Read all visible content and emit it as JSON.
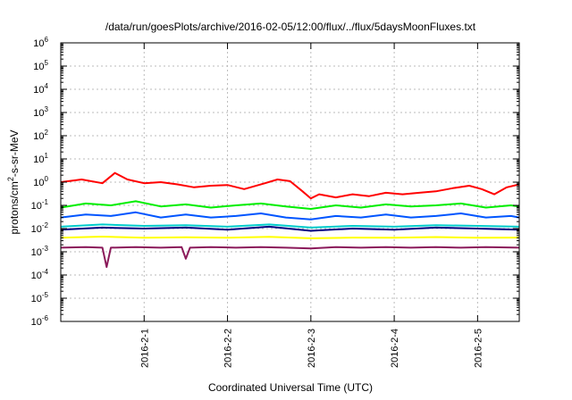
{
  "chart_data": {
    "type": "line",
    "title": "/data/run/goesPlots/archive/2016-02-05/12:00/flux/../flux/5daysMoonFluxes.txt",
    "xlabel": "Coordinated Universal Time (UTC)",
    "ylabel_parts": {
      "base": "protons/cm",
      "sup": "2",
      "rest": "-s-sr-MeV"
    },
    "y_scale": "log",
    "ylim_exponents": [
      -6,
      6
    ],
    "y_ticks": [
      {
        "base": "10",
        "exp": "-6"
      },
      {
        "base": "10",
        "exp": "-5"
      },
      {
        "base": "10",
        "exp": "-4"
      },
      {
        "base": "10",
        "exp": "-3"
      },
      {
        "base": "10",
        "exp": "-2"
      },
      {
        "base": "10",
        "exp": "-1"
      },
      {
        "base": "10",
        "exp": "0"
      },
      {
        "base": "10",
        "exp": "1"
      },
      {
        "base": "10",
        "exp": "2"
      },
      {
        "base": "10",
        "exp": "3"
      },
      {
        "base": "10",
        "exp": "4"
      },
      {
        "base": "10",
        "exp": "5"
      },
      {
        "base": "10",
        "exp": "6"
      }
    ],
    "x_ticks": [
      "2016-2-1",
      "2016-2-2",
      "2016-2-3",
      "2016-2-4",
      "2016-2-5"
    ],
    "x_tick_days": [
      1,
      2,
      3,
      4,
      5
    ],
    "xlim_days": [
      0.0,
      5.5
    ],
    "grid": true,
    "series": [
      {
        "color": "#ff0000",
        "x": [
          0.0,
          0.25,
          0.5,
          0.65,
          0.8,
          1.0,
          1.2,
          1.4,
          1.6,
          1.8,
          2.0,
          2.2,
          2.45,
          2.6,
          2.75,
          2.9,
          3.0,
          3.1,
          3.3,
          3.5,
          3.7,
          3.9,
          4.1,
          4.3,
          4.5,
          4.7,
          4.9,
          5.05,
          5.2,
          5.35,
          5.5
        ],
        "y": [
          1.0,
          1.3,
          0.9,
          2.5,
          1.3,
          0.9,
          1.0,
          0.8,
          0.6,
          0.7,
          0.75,
          0.5,
          0.9,
          1.3,
          1.1,
          0.4,
          0.2,
          0.3,
          0.22,
          0.3,
          0.25,
          0.35,
          0.3,
          0.35,
          0.4,
          0.55,
          0.7,
          0.5,
          0.3,
          0.6,
          0.8
        ]
      },
      {
        "color": "#00ee00",
        "x": [
          0.0,
          0.3,
          0.6,
          0.9,
          1.2,
          1.5,
          1.8,
          2.1,
          2.4,
          2.7,
          3.0,
          3.3,
          3.6,
          3.9,
          4.2,
          4.5,
          4.8,
          5.1,
          5.4,
          5.5
        ],
        "y": [
          0.08,
          0.12,
          0.1,
          0.15,
          0.09,
          0.11,
          0.08,
          0.1,
          0.12,
          0.09,
          0.07,
          0.1,
          0.08,
          0.11,
          0.09,
          0.1,
          0.12,
          0.08,
          0.1,
          0.09
        ]
      },
      {
        "color": "#0055ff",
        "x": [
          0.0,
          0.3,
          0.6,
          0.9,
          1.2,
          1.5,
          1.8,
          2.1,
          2.4,
          2.7,
          3.0,
          3.3,
          3.6,
          3.9,
          4.2,
          4.5,
          4.8,
          5.1,
          5.4,
          5.5
        ],
        "y": [
          0.03,
          0.04,
          0.035,
          0.05,
          0.03,
          0.04,
          0.03,
          0.035,
          0.045,
          0.03,
          0.025,
          0.035,
          0.03,
          0.04,
          0.03,
          0.035,
          0.045,
          0.03,
          0.035,
          0.03
        ]
      },
      {
        "color": "#00cccc",
        "x": [
          0.0,
          0.5,
          1.0,
          1.5,
          2.0,
          2.5,
          3.0,
          3.5,
          4.0,
          4.5,
          5.0,
          5.5
        ],
        "y": [
          0.012,
          0.015,
          0.013,
          0.014,
          0.012,
          0.015,
          0.011,
          0.013,
          0.012,
          0.014,
          0.013,
          0.012
        ]
      },
      {
        "color": "#000080",
        "x": [
          0.0,
          0.5,
          1.0,
          1.5,
          2.0,
          2.5,
          3.0,
          3.5,
          4.0,
          4.5,
          5.0,
          5.5
        ],
        "y": [
          0.009,
          0.011,
          0.01,
          0.011,
          0.009,
          0.012,
          0.008,
          0.01,
          0.009,
          0.011,
          0.01,
          0.009
        ]
      },
      {
        "color": "#ffff00",
        "x": [
          0.0,
          0.5,
          1.0,
          1.5,
          2.0,
          2.5,
          3.0,
          3.5,
          4.0,
          4.5,
          5.0,
          5.5
        ],
        "y": [
          0.004,
          0.0045,
          0.004,
          0.0042,
          0.004,
          0.0044,
          0.0038,
          0.0041,
          0.004,
          0.0043,
          0.004,
          0.0041
        ]
      },
      {
        "color": "#8b1a5a",
        "x": [
          0.0,
          0.3,
          0.5,
          0.55,
          0.6,
          0.9,
          1.2,
          1.45,
          1.5,
          1.55,
          1.8,
          2.1,
          2.4,
          2.7,
          3.0,
          3.3,
          3.6,
          3.9,
          4.2,
          4.5,
          4.8,
          5.1,
          5.5
        ],
        "y": [
          0.0015,
          0.0016,
          0.0015,
          0.00022,
          0.0015,
          0.0016,
          0.0015,
          0.0016,
          0.0005,
          0.0015,
          0.0016,
          0.0015,
          0.0016,
          0.0015,
          0.0014,
          0.0016,
          0.0015,
          0.0016,
          0.0015,
          0.0016,
          0.0015,
          0.0016,
          0.0015
        ]
      }
    ]
  }
}
